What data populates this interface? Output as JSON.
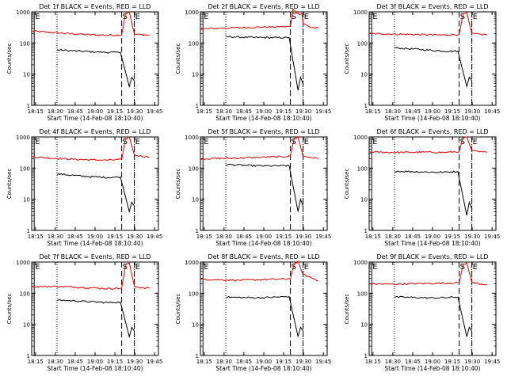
{
  "colors": {
    "events": "#000000",
    "lld": "#e00000",
    "axis": "#000000",
    "background": "#ffffff"
  },
  "chart_data": [
    {
      "type": "line",
      "title": "Det 1f BLACK = Events, RED = LLD",
      "xlabel": "Start Time (14-Feb-08 18:10:40)",
      "ylabel": "Counts/sec",
      "yscale": "log",
      "ylim": [
        1,
        1000
      ],
      "yticks": [
        "1",
        "10",
        "100",
        "1000"
      ],
      "xticks": [
        "18:15",
        "18:30",
        "18:45",
        "19:00",
        "19:15",
        "19:30",
        "19:45"
      ],
      "markers": [
        {
          "label": "E"
        },
        {
          "label": "S"
        },
        {
          "label": "E"
        }
      ],
      "series": [
        {
          "color": "#e00000",
          "x": [
            0.0,
            0.15,
            0.3,
            0.45,
            0.6,
            0.71,
            0.74,
            0.77,
            0.81,
            0.87,
            0.93
          ],
          "y": [
            240,
            220,
            200,
            185,
            178,
            182,
            900,
            1000,
            190,
            185,
            180
          ]
        },
        {
          "color": "#000000",
          "x": [
            0.2,
            0.3,
            0.4,
            0.5,
            0.6,
            0.7,
            0.77,
            0.79,
            0.81
          ],
          "y": [
            60,
            57,
            54,
            52,
            50,
            50,
            4,
            8,
            6
          ]
        }
      ]
    },
    {
      "type": "line",
      "title": "Det 2f BLACK = Events, RED = LLD",
      "xlabel": "Start Time (14-Feb-08 18:10:40)",
      "ylabel": "Counts/sec",
      "yscale": "log",
      "ylim": [
        1,
        1000
      ],
      "yticks": [
        "1",
        "10",
        "100",
        "1000"
      ],
      "xticks": [
        "18:15",
        "18:30",
        "18:45",
        "19:00",
        "19:15",
        "19:30",
        "19:45"
      ],
      "markers": [
        {
          "label": "E"
        },
        {
          "label": "S"
        },
        {
          "label": "E"
        }
      ],
      "series": [
        {
          "color": "#e00000",
          "x": [
            0.0,
            0.15,
            0.3,
            0.45,
            0.6,
            0.71,
            0.73,
            0.75,
            0.78,
            0.8,
            0.81,
            0.87,
            0.93
          ],
          "y": [
            280,
            300,
            310,
            320,
            330,
            340,
            1200,
            1000,
            850,
            900,
            420,
            320,
            300
          ]
        },
        {
          "color": "#000000",
          "x": [
            0.2,
            0.3,
            0.4,
            0.5,
            0.6,
            0.7,
            0.77,
            0.79,
            0.81
          ],
          "y": [
            160,
            155,
            150,
            150,
            148,
            150,
            3,
            8,
            5
          ]
        }
      ]
    },
    {
      "type": "line",
      "title": "Det 3f BLACK = Events, RED = LLD",
      "xlabel": "Start Time (14-Feb-08 18:10:40)",
      "ylabel": "Counts/sec",
      "yscale": "log",
      "ylim": [
        1,
        1000
      ],
      "yticks": [
        "1",
        "10",
        "100",
        "1000"
      ],
      "xticks": [
        "18:15",
        "18:30",
        "18:45",
        "19:00",
        "19:15",
        "19:30",
        "19:45"
      ],
      "markers": [
        {
          "label": "E"
        },
        {
          "label": "S"
        },
        {
          "label": "E"
        }
      ],
      "series": [
        {
          "color": "#e00000",
          "x": [
            0.0,
            0.15,
            0.3,
            0.45,
            0.6,
            0.71,
            0.74,
            0.77,
            0.81,
            0.87,
            0.93
          ],
          "y": [
            200,
            195,
            190,
            185,
            180,
            190,
            800,
            950,
            200,
            190,
            185
          ]
        },
        {
          "color": "#000000",
          "x": [
            0.2,
            0.3,
            0.4,
            0.5,
            0.6,
            0.7,
            0.77,
            0.79,
            0.81
          ],
          "y": [
            70,
            66,
            62,
            58,
            55,
            55,
            4,
            8,
            6
          ]
        }
      ]
    },
    {
      "type": "line",
      "title": "Det 4f BLACK = Events, RED = LLD",
      "xlabel": "Start Time (14-Feb-08 18:10:40)",
      "ylabel": "Counts/sec",
      "yscale": "log",
      "ylim": [
        1,
        1000
      ],
      "yticks": [
        "1",
        "10",
        "100",
        "1000"
      ],
      "xticks": [
        "18:15",
        "18:30",
        "18:45",
        "19:00",
        "19:15",
        "19:30",
        "19:45"
      ],
      "markers": [
        {
          "label": "E"
        },
        {
          "label": "S"
        },
        {
          "label": "E"
        }
      ],
      "series": [
        {
          "color": "#e00000",
          "x": [
            0.0,
            0.15,
            0.3,
            0.45,
            0.6,
            0.71,
            0.74,
            0.77,
            0.81,
            0.87,
            0.93
          ],
          "y": [
            230,
            210,
            195,
            185,
            180,
            190,
            850,
            1000,
            260,
            240,
            230
          ]
        },
        {
          "color": "#000000",
          "x": [
            0.2,
            0.3,
            0.4,
            0.5,
            0.6,
            0.7,
            0.77,
            0.79,
            0.81
          ],
          "y": [
            65,
            60,
            55,
            52,
            50,
            52,
            4,
            8,
            6
          ]
        }
      ]
    },
    {
      "type": "line",
      "title": "Det 5f BLACK = Events, RED = LLD",
      "xlabel": "Start Time (14-Feb-08 18:10:40)",
      "ylabel": "Counts/sec",
      "yscale": "log",
      "ylim": [
        1,
        1000
      ],
      "yticks": [
        "1",
        "10",
        "100",
        "1000"
      ],
      "xticks": [
        "18:15",
        "18:30",
        "18:45",
        "19:00",
        "19:15",
        "19:30",
        "19:45"
      ],
      "markers": [
        {
          "label": "E"
        },
        {
          "label": "S"
        },
        {
          "label": "E"
        }
      ],
      "series": [
        {
          "color": "#e00000",
          "x": [
            0.0,
            0.15,
            0.3,
            0.45,
            0.6,
            0.71,
            0.74,
            0.77,
            0.81,
            0.87,
            0.93
          ],
          "y": [
            200,
            205,
            210,
            220,
            230,
            240,
            900,
            1000,
            240,
            220,
            200
          ]
        },
        {
          "color": "#000000",
          "x": [
            0.2,
            0.3,
            0.4,
            0.5,
            0.6,
            0.7,
            0.77,
            0.79,
            0.81
          ],
          "y": [
            130,
            125,
            120,
            118,
            118,
            120,
            4,
            10,
            6
          ]
        }
      ]
    },
    {
      "type": "line",
      "title": "Det 6f BLACK = Events, RED = LLD",
      "xlabel": "Start Time (14-Feb-08 18:10:40)",
      "ylabel": "Counts/sec",
      "yscale": "log",
      "ylim": [
        1,
        1000
      ],
      "yticks": [
        "1",
        "10",
        "100",
        "1000"
      ],
      "xticks": [
        "18:15",
        "18:30",
        "18:45",
        "19:00",
        "19:15",
        "19:30",
        "19:45"
      ],
      "markers": [
        {
          "label": "E"
        },
        {
          "label": "S"
        },
        {
          "label": "E"
        }
      ],
      "series": [
        {
          "color": "#e00000",
          "x": [
            0.0,
            0.15,
            0.3,
            0.45,
            0.6,
            0.71,
            0.74,
            0.77,
            0.81,
            0.87,
            0.93
          ],
          "y": [
            330,
            320,
            320,
            325,
            320,
            340,
            900,
            1000,
            360,
            330,
            320
          ]
        },
        {
          "color": "#000000",
          "x": [
            0.2,
            0.3,
            0.4,
            0.5,
            0.6,
            0.7,
            0.77,
            0.79,
            0.81
          ],
          "y": [
            80,
            78,
            76,
            74,
            74,
            78,
            3,
            8,
            5
          ]
        }
      ]
    },
    {
      "type": "line",
      "title": "Det 7f BLACK = Events, RED = LLD",
      "xlabel": "Start Time (14-Feb-08 18:10:40)",
      "ylabel": "Counts/sec",
      "yscale": "log",
      "ylim": [
        1,
        1000
      ],
      "yticks": [
        "1",
        "10",
        "100",
        "1000"
      ],
      "xticks": [
        "18:15",
        "18:30",
        "18:45",
        "19:00",
        "19:15",
        "19:30",
        "19:45"
      ],
      "markers": [
        {
          "label": "E"
        },
        {
          "label": "S"
        },
        {
          "label": "E"
        }
      ],
      "series": [
        {
          "color": "#e00000",
          "x": [
            0.0,
            0.15,
            0.3,
            0.45,
            0.6,
            0.71,
            0.74,
            0.77,
            0.81,
            0.87,
            0.93
          ],
          "y": [
            160,
            165,
            160,
            150,
            140,
            145,
            800,
            950,
            160,
            150,
            145
          ]
        },
        {
          "color": "#000000",
          "x": [
            0.2,
            0.3,
            0.4,
            0.5,
            0.6,
            0.7,
            0.77,
            0.79,
            0.81
          ],
          "y": [
            60,
            58,
            55,
            52,
            50,
            52,
            4,
            8,
            6
          ]
        }
      ]
    },
    {
      "type": "line",
      "title": "Det 8f BLACK = Events, RED = LLD",
      "xlabel": "Start Time (14-Feb-08 18:10:40)",
      "ylabel": "Counts/sec",
      "yscale": "log",
      "ylim": [
        1,
        1000
      ],
      "yticks": [
        "1",
        "10",
        "100",
        "1000"
      ],
      "xticks": [
        "18:15",
        "18:30",
        "18:45",
        "19:00",
        "19:15",
        "19:30",
        "19:45"
      ],
      "markers": [
        {
          "label": "E"
        },
        {
          "label": "S"
        },
        {
          "label": "E"
        }
      ],
      "series": [
        {
          "color": "#e00000",
          "x": [
            0.0,
            0.15,
            0.3,
            0.45,
            0.6,
            0.71,
            0.74,
            0.77,
            0.81,
            0.87,
            0.93
          ],
          "y": [
            280,
            270,
            260,
            270,
            280,
            290,
            900,
            1000,
            400,
            320,
            250
          ]
        },
        {
          "color": "#000000",
          "x": [
            0.2,
            0.3,
            0.4,
            0.5,
            0.6,
            0.7,
            0.77,
            0.79,
            0.81
          ],
          "y": [
            75,
            73,
            72,
            72,
            75,
            78,
            4,
            8,
            6
          ]
        }
      ]
    },
    {
      "type": "line",
      "title": "Det 9f BLACK = Events, RED = LLD",
      "xlabel": "Start Time (14-Feb-08 18:10:40)",
      "ylabel": "Counts/sec",
      "yscale": "log",
      "ylim": [
        1,
        1000
      ],
      "yticks": [
        "1",
        "10",
        "100",
        "1000"
      ],
      "xticks": [
        "18:15",
        "18:30",
        "18:45",
        "19:00",
        "19:15",
        "19:30",
        "19:45"
      ],
      "markers": [
        {
          "label": "E"
        },
        {
          "label": "S"
        },
        {
          "label": "E"
        }
      ],
      "series": [
        {
          "color": "#e00000",
          "x": [
            0.0,
            0.15,
            0.3,
            0.45,
            0.6,
            0.71,
            0.74,
            0.77,
            0.81,
            0.87,
            0.93
          ],
          "y": [
            200,
            195,
            200,
            205,
            210,
            215,
            800,
            950,
            220,
            200,
            190
          ]
        },
        {
          "color": "#000000",
          "x": [
            0.2,
            0.3,
            0.4,
            0.5,
            0.6,
            0.7,
            0.77,
            0.79,
            0.81
          ],
          "y": [
            75,
            74,
            72,
            70,
            72,
            75,
            4,
            8,
            6
          ]
        }
      ]
    }
  ]
}
